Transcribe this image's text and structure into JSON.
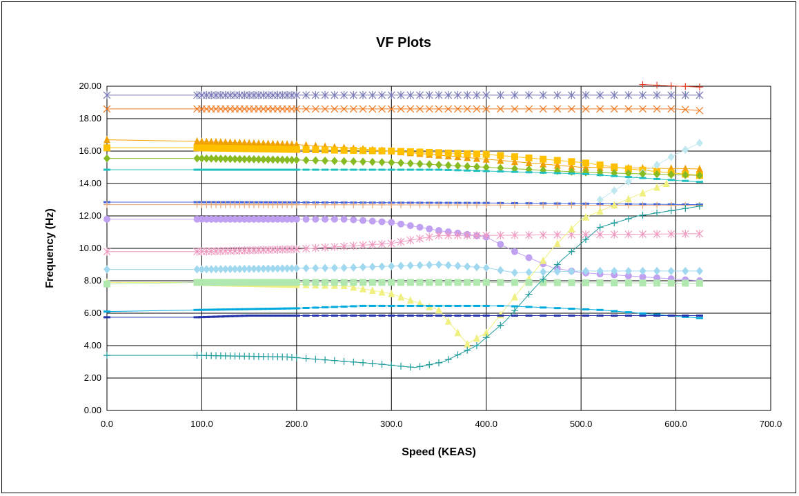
{
  "chart_data": {
    "type": "line",
    "title": "VF Plots",
    "xlabel": "Speed (KEAS)",
    "ylabel": "Frequency (Hz)",
    "xlim": [
      0,
      700
    ],
    "ylim": [
      0,
      20
    ],
    "x_ticks": [
      "0.0",
      "100.0",
      "200.0",
      "300.0",
      "400.0",
      "500.0",
      "600.0",
      "700.0"
    ],
    "y_ticks": [
      "0.00",
      "2.00",
      "4.00",
      "6.00",
      "8.00",
      "10.00",
      "12.00",
      "14.00",
      "16.00",
      "18.00",
      "20.00"
    ],
    "grid": true,
    "legend": "none",
    "series": [
      {
        "color": "#e8402a",
        "marker": "plus",
        "x": [
          565,
          625
        ],
        "y": [
          20.1,
          19.95
        ]
      },
      {
        "color": "#7a7ab8",
        "marker": "star",
        "x": [
          0,
          95,
          625
        ],
        "y": [
          19.45,
          19.45,
          19.45
        ]
      },
      {
        "color": "#f07820",
        "marker": "x",
        "x": [
          0,
          95,
          600,
          625
        ],
        "y": [
          18.6,
          18.6,
          18.6,
          18.5
        ]
      },
      {
        "color": "#f0a000",
        "marker": "triangle",
        "x": [
          0,
          95,
          200,
          300,
          400,
          500,
          625
        ],
        "y": [
          16.7,
          16.6,
          16.4,
          16.0,
          15.5,
          15.0,
          14.9
        ]
      },
      {
        "color": "#ffc000",
        "marker": "square",
        "x": [
          0,
          95,
          200,
          300,
          400,
          500,
          550,
          625
        ],
        "y": [
          16.2,
          16.2,
          16.1,
          16.0,
          15.8,
          15.3,
          14.9,
          14.5
        ]
      },
      {
        "color": "#c0e8f0",
        "marker": "diamond",
        "x": [
          520,
          560,
          600,
          625
        ],
        "y": [
          13.0,
          14.5,
          15.8,
          16.5
        ]
      },
      {
        "color": "#88bb22",
        "marker": "diamond",
        "x": [
          0,
          95,
          200,
          300,
          400,
          500,
          625
        ],
        "y": [
          15.55,
          15.55,
          15.45,
          15.3,
          15.0,
          14.7,
          14.5
        ]
      },
      {
        "color": "#20c0c0",
        "marker": "dash",
        "x": [
          0,
          95,
          350,
          500,
          625
        ],
        "y": [
          14.85,
          14.85,
          14.85,
          14.6,
          14.1
        ]
      },
      {
        "color": "#4466dd",
        "marker": "dash",
        "x": [
          0,
          95,
          400,
          625
        ],
        "y": [
          12.85,
          12.85,
          12.8,
          12.7
        ]
      },
      {
        "color": "#e8a878",
        "marker": "plus",
        "x": [
          0,
          95,
          625
        ],
        "y": [
          12.7,
          12.7,
          12.65
        ]
      },
      {
        "color": "#c0a0f0",
        "marker": "circle",
        "x": [
          0,
          95,
          250,
          300,
          350,
          400,
          430,
          470,
          500,
          550,
          625
        ],
        "y": [
          11.8,
          11.8,
          11.8,
          11.6,
          11.1,
          10.7,
          9.8,
          8.8,
          8.5,
          8.3,
          8.0
        ]
      },
      {
        "color": "#f098c0",
        "marker": "star",
        "x": [
          0,
          95,
          200,
          300,
          350,
          400,
          625
        ],
        "y": [
          9.8,
          9.8,
          9.95,
          10.3,
          10.8,
          10.8,
          10.9
        ]
      },
      {
        "color": "#a0d8f0",
        "marker": "diamond",
        "x": [
          0,
          95,
          250,
          350,
          400,
          430,
          500,
          625
        ],
        "y": [
          8.7,
          8.7,
          8.8,
          9.0,
          8.8,
          8.5,
          8.6,
          8.6
        ]
      },
      {
        "color": "#f0f080",
        "marker": "triangle",
        "x": [
          0,
          95,
          250,
          300,
          350,
          380,
          400,
          430,
          470,
          500,
          560,
          590
        ],
        "y": [
          7.9,
          7.9,
          7.7,
          7.2,
          6.2,
          4.1,
          4.8,
          7.0,
          10.0,
          11.8,
          13.3,
          14.0
        ]
      },
      {
        "color": "#b0e8b0",
        "marker": "square",
        "x": [
          0,
          95,
          400,
          625
        ],
        "y": [
          7.8,
          7.9,
          7.9,
          7.85
        ]
      },
      {
        "color": "#00aadd",
        "marker": "dash",
        "x": [
          0,
          95,
          200,
          270,
          420,
          520,
          625
        ],
        "y": [
          6.1,
          6.2,
          6.3,
          6.45,
          6.45,
          6.2,
          5.7
        ]
      },
      {
        "color": "#2233aa",
        "marker": "dash",
        "x": [
          0,
          95,
          150,
          625
        ],
        "y": [
          5.75,
          5.75,
          5.85,
          5.85
        ]
      },
      {
        "color": "#1a9a9a",
        "marker": "plus",
        "x": [
          0,
          95,
          190,
          280,
          325,
          355,
          390,
          420,
          450,
          480,
          520,
          560,
          625
        ],
        "y": [
          3.4,
          3.4,
          3.3,
          2.9,
          2.65,
          3.0,
          4.0,
          5.5,
          7.5,
          9.3,
          11.3,
          12.0,
          12.6
        ]
      }
    ]
  }
}
